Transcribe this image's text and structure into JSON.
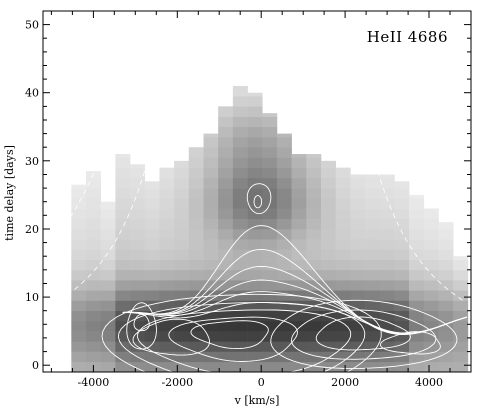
{
  "chart_data": {
    "type": "heatmap",
    "title": "",
    "annotation": "HeII 4686",
    "xlabel": "v [km/s]",
    "ylabel": "time delay [days]",
    "xlim": [
      -5200,
      5000
    ],
    "ylim": [
      -1,
      52
    ],
    "x_ticks": [
      -4000,
      -2000,
      0,
      2000,
      4000
    ],
    "x_tick_labels": [
      "-4000",
      "-2000",
      "0",
      "2000",
      "4000"
    ],
    "y_ticks": [
      0,
      10,
      20,
      30,
      40,
      50
    ],
    "y_tick_labels": [
      "0",
      "10",
      "20",
      "30",
      "40",
      "50"
    ],
    "colormap": "grayscale (white = low, black = high)",
    "grid": false,
    "velocity_bin_width_kms": 350,
    "velocity_bins": [
      -4350,
      -4000,
      -3650,
      -3300,
      -2950,
      -2600,
      -2250,
      -1900,
      -1550,
      -1200,
      -850,
      -500,
      -150,
      200,
      550,
      900,
      1250,
      1600,
      1950,
      2300,
      2650,
      3000,
      3350,
      3700,
      4050,
      4400,
      4750
    ],
    "column_top_delay_days": [
      26.5,
      28.5,
      24,
      31,
      29.5,
      27,
      29,
      30,
      32,
      34,
      38,
      41,
      40,
      37,
      34,
      31,
      31,
      30,
      29,
      28,
      28,
      28,
      27,
      25,
      23,
      21,
      16
    ],
    "overlays": [
      {
        "kind": "contours",
        "color": "#ffffff",
        "style": "solid"
      },
      {
        "kind": "contours",
        "color": "#ffffff",
        "style": "dashed"
      }
    ]
  }
}
